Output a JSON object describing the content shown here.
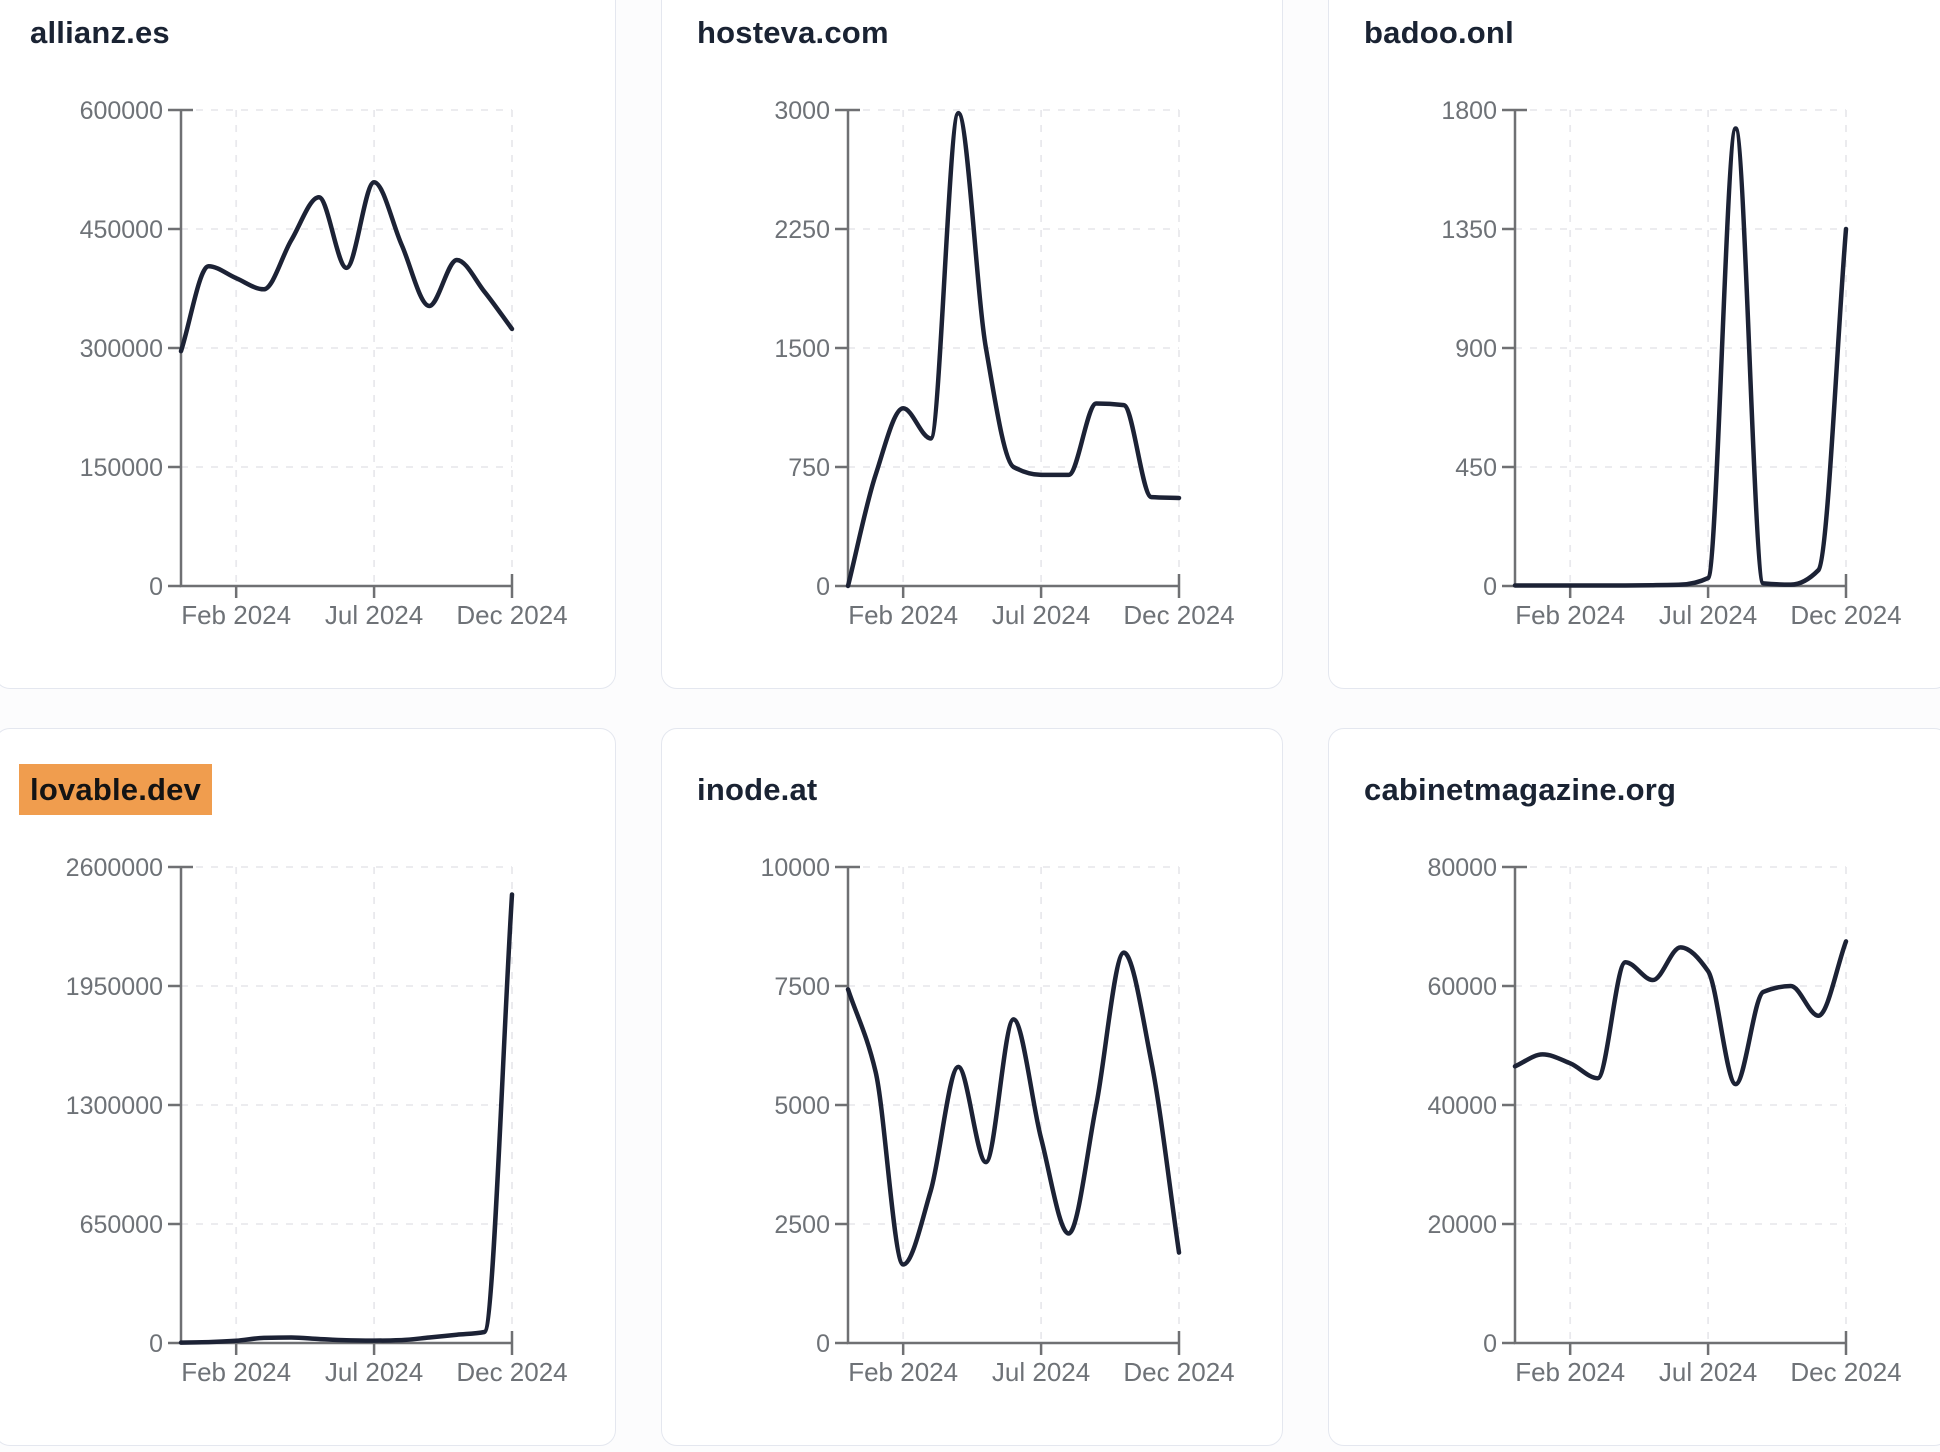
{
  "style": {
    "page_bg": "#fcfcfd",
    "card_bg": "#ffffff",
    "card_border": "#e4e7ef",
    "title_color": "#1a2333",
    "highlight_bg": "#f09d4e",
    "highlight_text": "#141414",
    "line_color": "#1c2235",
    "axis_color": "#6f7073",
    "tick_label_color": "#6e7277",
    "grid_color": "#e9e9ed"
  },
  "chart_data": [
    {
      "type": "line",
      "title": "allianz.es",
      "highlighted": false,
      "x": [
        "Dec 2023",
        "Jan 2024",
        "Feb 2024",
        "Mar 2024",
        "Apr 2024",
        "May 2024",
        "Jun 2024",
        "Jul 2024",
        "Aug 2024",
        "Sep 2024",
        "Oct 2024",
        "Nov 2024",
        "Dec 2024"
      ],
      "values": [
        296000,
        403000,
        388000,
        374000,
        436000,
        490000,
        401000,
        509000,
        430000,
        353000,
        411000,
        371000,
        324000
      ],
      "y_ticks": [
        0,
        150000,
        300000,
        450000,
        600000
      ],
      "x_axis_ticks": [
        "Feb 2024",
        "Jul 2024",
        "Dec 2024"
      ],
      "ylim": [
        0,
        600000
      ],
      "grid": true,
      "legend": "none"
    },
    {
      "type": "line",
      "title": "hosteva.com",
      "highlighted": false,
      "x": [
        "Dec 2023",
        "Jan 2024",
        "Feb 2024",
        "Mar 2024",
        "Apr 2024",
        "May 2024",
        "Jun 2024",
        "Jul 2024",
        "Aug 2024",
        "Sep 2024",
        "Oct 2024",
        "Nov 2024",
        "Dec 2024"
      ],
      "values": [
        0,
        700,
        1120,
        930,
        2980,
        1500,
        750,
        700,
        700,
        1150,
        1140,
        560,
        555
      ],
      "y_ticks": [
        0,
        750,
        1500,
        2250,
        3000
      ],
      "x_axis_ticks": [
        "Feb 2024",
        "Jul 2024",
        "Dec 2024"
      ],
      "ylim": [
        0,
        3000
      ],
      "grid": true,
      "legend": "none"
    },
    {
      "type": "line",
      "title": "badoo.onl",
      "highlighted": false,
      "x": [
        "Dec 2023",
        "Jan 2024",
        "Feb 2024",
        "Mar 2024",
        "Apr 2024",
        "May 2024",
        "Jun 2024",
        "Jul 2024",
        "Aug 2024",
        "Sep 2024",
        "Oct 2024",
        "Nov 2024",
        "Dec 2024"
      ],
      "values": [
        2,
        2,
        2,
        2,
        2,
        3,
        5,
        30,
        1730,
        10,
        5,
        60,
        1350
      ],
      "y_ticks": [
        0,
        450,
        900,
        1350,
        1800
      ],
      "x_axis_ticks": [
        "Feb 2024",
        "Jul 2024",
        "Dec 2024"
      ],
      "ylim": [
        0,
        1800
      ],
      "grid": true,
      "legend": "none"
    },
    {
      "type": "line",
      "title": "lovable.dev",
      "highlighted": true,
      "x": [
        "Dec 2023",
        "Jan 2024",
        "Feb 2024",
        "Mar 2024",
        "Apr 2024",
        "May 2024",
        "Jun 2024",
        "Jul 2024",
        "Aug 2024",
        "Sep 2024",
        "Oct 2024",
        "Nov 2024",
        "Dec 2024"
      ],
      "values": [
        2000,
        5000,
        12000,
        28000,
        30000,
        22000,
        15000,
        13000,
        16000,
        30000,
        45000,
        60000,
        2450000
      ],
      "y_ticks": [
        0,
        650000,
        1300000,
        1950000,
        2600000
      ],
      "x_axis_ticks": [
        "Feb 2024",
        "Jul 2024",
        "Dec 2024"
      ],
      "ylim": [
        0,
        2600000
      ],
      "grid": true,
      "legend": "none"
    },
    {
      "type": "line",
      "title": "inode.at",
      "highlighted": false,
      "x": [
        "Dec 2023",
        "Jan 2024",
        "Feb 2024",
        "Mar 2024",
        "Apr 2024",
        "May 2024",
        "Jun 2024",
        "Jul 2024",
        "Aug 2024",
        "Sep 2024",
        "Oct 2024",
        "Nov 2024",
        "Dec 2024"
      ],
      "values": [
        7430,
        5700,
        1650,
        3200,
        5800,
        3800,
        6800,
        4300,
        2300,
        5000,
        8200,
        5900,
        1900
      ],
      "y_ticks": [
        0,
        2500,
        5000,
        7500,
        10000
      ],
      "x_axis_ticks": [
        "Feb 2024",
        "Jul 2024",
        "Dec 2024"
      ],
      "ylim": [
        0,
        10000
      ],
      "grid": true,
      "legend": "none"
    },
    {
      "type": "line",
      "title": "cabinetmagazine.org",
      "highlighted": false,
      "x": [
        "Dec 2023",
        "Jan 2024",
        "Feb 2024",
        "Mar 2024",
        "Apr 2024",
        "May 2024",
        "Jun 2024",
        "Jul 2024",
        "Aug 2024",
        "Sep 2024",
        "Oct 2024",
        "Nov 2024",
        "Dec 2024"
      ],
      "values": [
        46500,
        48500,
        47000,
        44500,
        64000,
        61000,
        66500,
        62500,
        43500,
        59000,
        60000,
        55000,
        67500
      ],
      "y_ticks": [
        0,
        20000,
        40000,
        60000,
        80000
      ],
      "x_axis_ticks": [
        "Feb 2024",
        "Jul 2024",
        "Dec 2024"
      ],
      "ylim": [
        0,
        80000
      ],
      "grid": true,
      "legend": "none"
    }
  ]
}
